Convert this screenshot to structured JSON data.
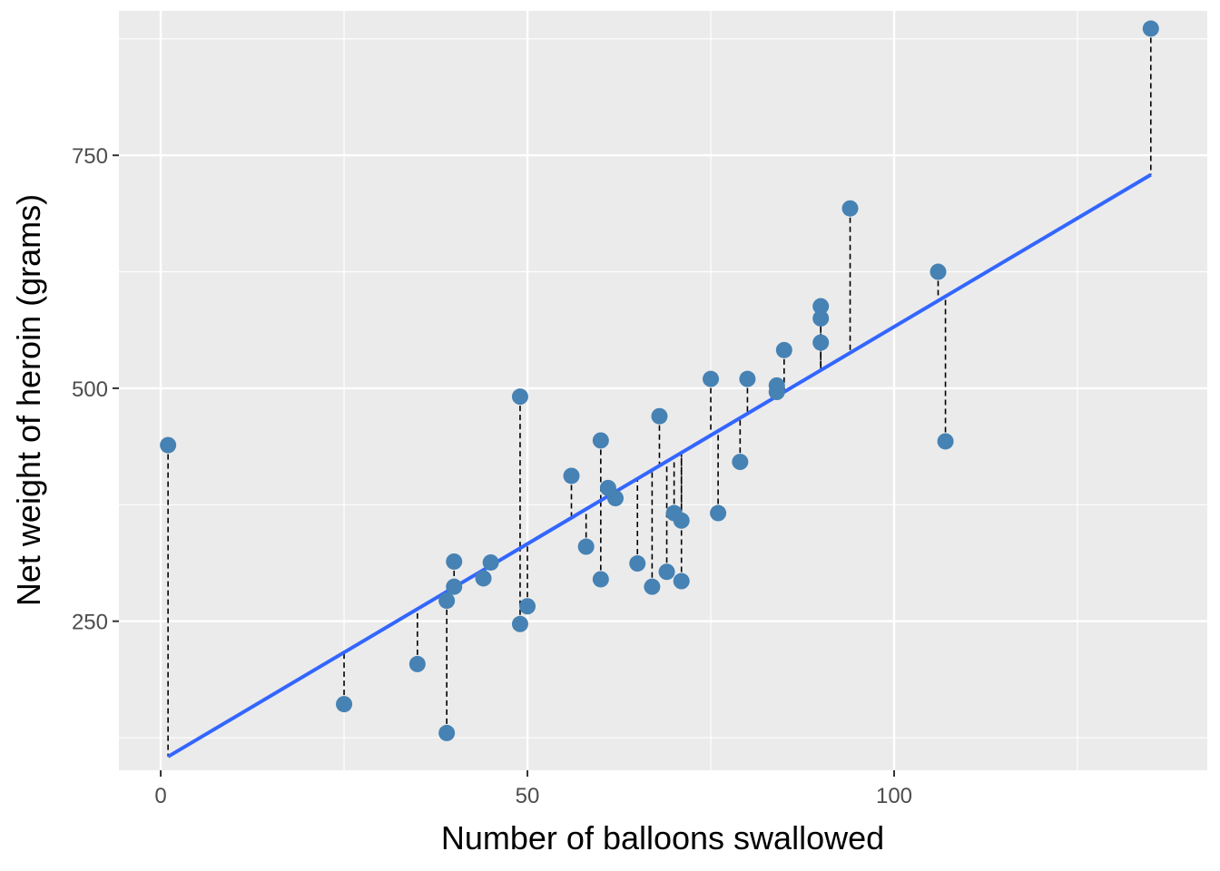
{
  "chart_data": {
    "type": "scatter",
    "title": "",
    "xlabel": "Number of balloons swallowed",
    "ylabel": "Net weight of heroin (grams)",
    "xlim": [
      -5.7,
      142.7
    ],
    "ylim": [
      90,
      905
    ],
    "x_ticks": [
      0,
      50,
      100
    ],
    "x_tick_labels": [
      "0",
      "50",
      "100"
    ],
    "y_ticks": [
      250,
      500,
      750
    ],
    "y_tick_labels": [
      "250",
      "500",
      "750"
    ],
    "grid": true,
    "legend": "none",
    "points": [
      {
        "x": 1,
        "y": 439
      },
      {
        "x": 25,
        "y": 161
      },
      {
        "x": 35,
        "y": 204
      },
      {
        "x": 39,
        "y": 130
      },
      {
        "x": 39,
        "y": 272
      },
      {
        "x": 40,
        "y": 287
      },
      {
        "x": 40,
        "y": 314
      },
      {
        "x": 44,
        "y": 296
      },
      {
        "x": 45,
        "y": 313
      },
      {
        "x": 49,
        "y": 491
      },
      {
        "x": 49,
        "y": 247
      },
      {
        "x": 50,
        "y": 266
      },
      {
        "x": 56,
        "y": 406
      },
      {
        "x": 58,
        "y": 330
      },
      {
        "x": 60,
        "y": 444
      },
      {
        "x": 60,
        "y": 295
      },
      {
        "x": 61,
        "y": 393
      },
      {
        "x": 62,
        "y": 382
      },
      {
        "x": 65,
        "y": 312
      },
      {
        "x": 67,
        "y": 287
      },
      {
        "x": 68,
        "y": 470
      },
      {
        "x": 69,
        "y": 303
      },
      {
        "x": 70,
        "y": 366
      },
      {
        "x": 71,
        "y": 358
      },
      {
        "x": 71,
        "y": 293
      },
      {
        "x": 75,
        "y": 510
      },
      {
        "x": 76,
        "y": 366
      },
      {
        "x": 79,
        "y": 421
      },
      {
        "x": 80,
        "y": 510
      },
      {
        "x": 84,
        "y": 503
      },
      {
        "x": 84,
        "y": 496
      },
      {
        "x": 85,
        "y": 541
      },
      {
        "x": 90,
        "y": 588
      },
      {
        "x": 90,
        "y": 575
      },
      {
        "x": 90,
        "y": 549
      },
      {
        "x": 94,
        "y": 693
      },
      {
        "x": 106,
        "y": 625
      },
      {
        "x": 107,
        "y": 443
      },
      {
        "x": 135,
        "y": 886
      }
    ],
    "fit_line": {
      "intercept": 100,
      "slope": 4.66,
      "x_start": 1,
      "x_end": 135
    },
    "colors": {
      "panel": "#ebebeb",
      "grid": "#ffffff",
      "point": "#4682b4",
      "fit_line": "#3366ff",
      "residual": "#000000",
      "tick_text": "#4d4d4d"
    }
  }
}
